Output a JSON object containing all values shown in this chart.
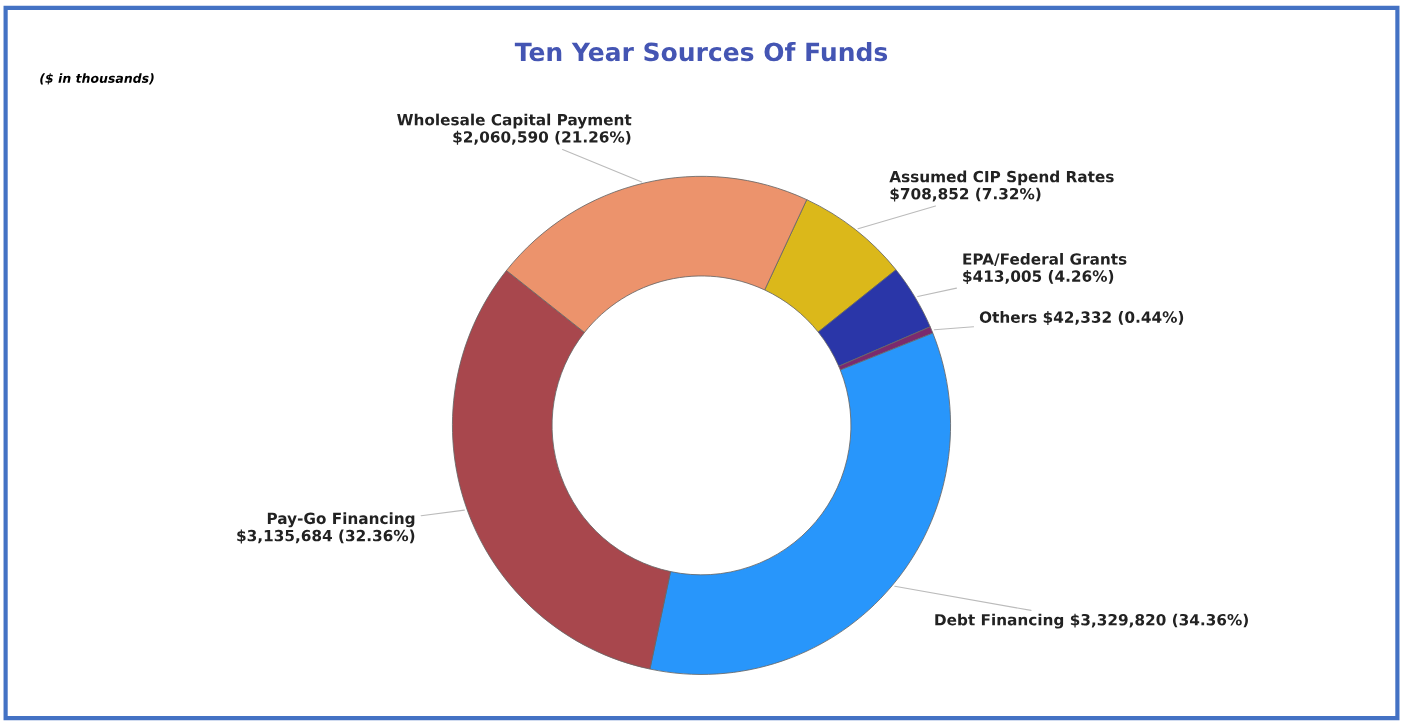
{
  "chart_data": {
    "type": "donut",
    "title": "Ten Year Sources Of Funds",
    "annotations": [
      "($ in thousands)"
    ],
    "categories": [
      "Assumed CIP Spend Rates",
      "EPA/Federal Grants",
      "Others",
      "Debt Financing",
      "Pay-Go Financing",
      "Wholesale Capital Payment"
    ],
    "values": [
      708852,
      413005,
      42332,
      3329820,
      3135684,
      2060590
    ],
    "value_labels": [
      "$708,852 (7.32%)",
      "$413,005 (4.26%)",
      "$42,332 (0.44%)",
      "$3,329,820 (34.36%)",
      "$3,135,684 (32.36%)",
      "$2,060,590 (21.26%)"
    ],
    "colors": [
      "#dbb81a",
      "#2a36a8",
      "#7b2a6e",
      "#2896fb",
      "#a8474d",
      "#ec936c"
    ],
    "legend": false
  }
}
